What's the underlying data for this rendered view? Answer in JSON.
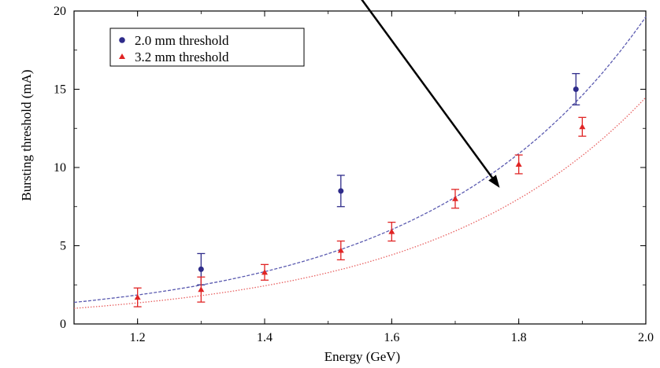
{
  "chart_data": {
    "type": "scatter",
    "xlabel": "Energy (GeV)",
    "ylabel": "Bursting threshold (mA)",
    "xlim": [
      1.1,
      2.0
    ],
    "ylim": [
      0,
      20
    ],
    "xticks": [
      1.2,
      1.4,
      1.6,
      1.8,
      2.0
    ],
    "xtick_labels": [
      "1.2",
      "1.4",
      "1.6",
      "1.8",
      "2.0"
    ],
    "yticks": [
      0,
      5,
      10,
      15,
      20
    ],
    "ytick_labels": [
      "0",
      "5",
      "10",
      "15",
      "20"
    ],
    "grid": false,
    "legend_position": "top-left",
    "series": [
      {
        "name": "2.0 mm threshold",
        "marker": "circle",
        "color": "#2e2b8a",
        "points": [
          {
            "x": 1.3,
            "y": 3.5,
            "err": 1.0
          },
          {
            "x": 1.52,
            "y": 8.5,
            "err": 1.0
          },
          {
            "x": 1.89,
            "y": 15.0,
            "err": 1.0
          }
        ],
        "fit": {
          "style": "dashed",
          "color": "#5b5bb0",
          "a": 1.38,
          "b": 2.95,
          "x0": 1.1
        }
      },
      {
        "name": "3.2 mm threshold",
        "marker": "triangle",
        "color": "#e02424",
        "points": [
          {
            "x": 1.2,
            "y": 1.7,
            "err": 0.6
          },
          {
            "x": 1.3,
            "y": 2.2,
            "err": 0.8
          },
          {
            "x": 1.4,
            "y": 3.3,
            "err": 0.5
          },
          {
            "x": 1.52,
            "y": 4.7,
            "err": 0.6
          },
          {
            "x": 1.6,
            "y": 5.9,
            "err": 0.6
          },
          {
            "x": 1.7,
            "y": 8.0,
            "err": 0.6
          },
          {
            "x": 1.8,
            "y": 10.2,
            "err": 0.6
          },
          {
            "x": 1.9,
            "y": 12.6,
            "err": 0.6
          }
        ],
        "fit": {
          "style": "dotted",
          "color": "#e86060",
          "a": 1.0,
          "b": 2.97,
          "x0": 1.1
        }
      }
    ],
    "annotation": {
      "type": "arrow",
      "from": {
        "x": 1.53,
        "y": 22
      },
      "to": {
        "x": 1.77,
        "y": 8.7
      }
    }
  }
}
